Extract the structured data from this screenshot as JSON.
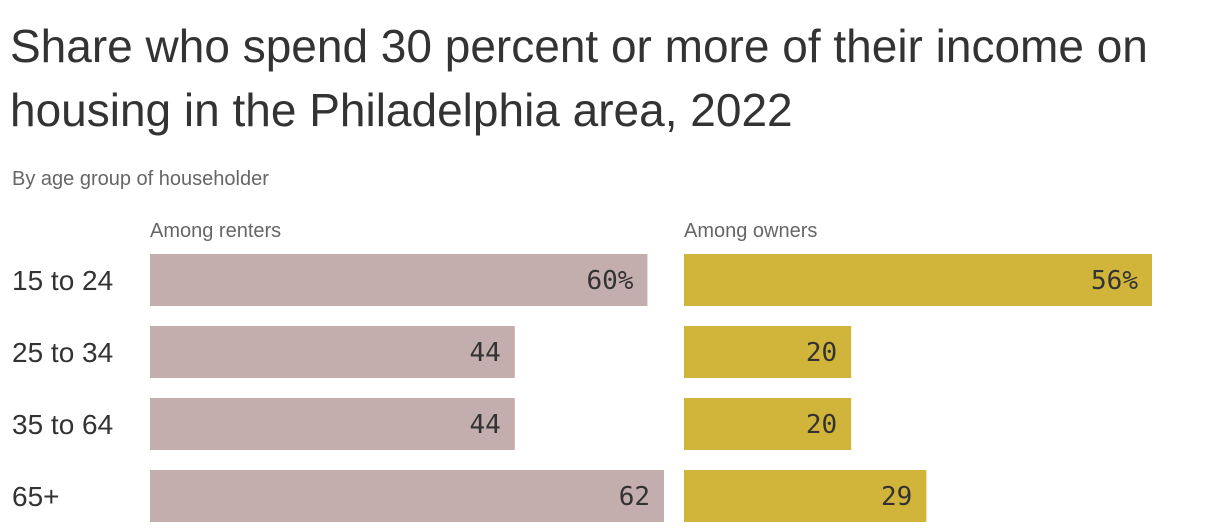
{
  "title": "Share who spend 30 percent or more of their income on housing in the Philadelphia area, 2022",
  "subtitle": "By age group of householder",
  "chart_data": {
    "type": "bar",
    "orientation": "horizontal",
    "unit": "%",
    "categories": [
      "15 to 24",
      "25 to 34",
      "35 to 64",
      "65+"
    ],
    "value_labels": [
      [
        "60%",
        "44",
        "44",
        "62"
      ],
      [
        "56%",
        "20",
        "20",
        "29"
      ]
    ],
    "series": [
      {
        "name": "Among renters",
        "values": [
          60,
          44,
          44,
          62
        ],
        "color": "#c3adad"
      },
      {
        "name": "Among owners",
        "values": [
          56,
          20,
          20,
          29
        ],
        "color": "#d1b43a"
      }
    ],
    "xlim": [
      0,
      62
    ],
    "grid": false,
    "legend": "panel headers"
  }
}
